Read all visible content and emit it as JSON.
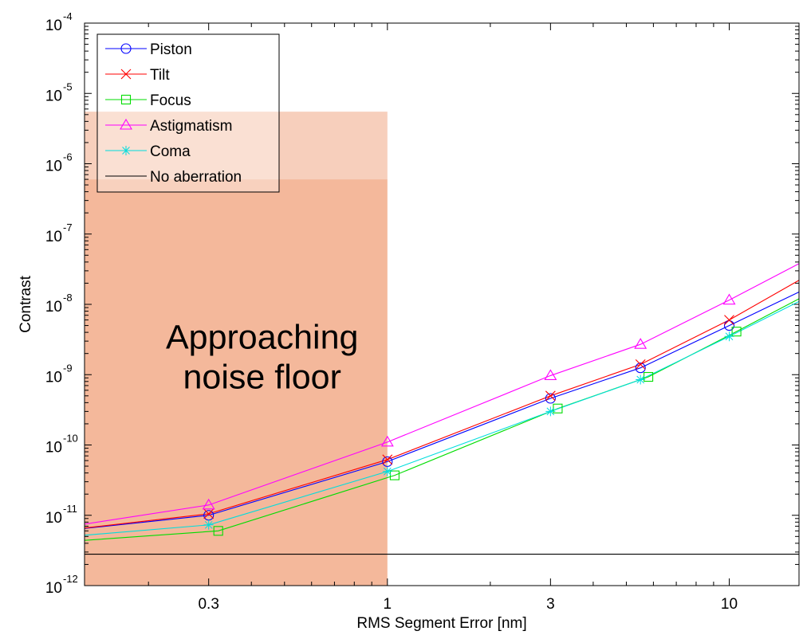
{
  "chart_data": {
    "type": "line",
    "xlabel": "RMS Segment Error [nm]",
    "ylabel": "Contrast",
    "x_scale": "log",
    "y_scale": "log",
    "xlim": [
      0.13,
      16
    ],
    "ylim": [
      1e-12,
      0.0001
    ],
    "x_ticks": [
      0.3,
      1,
      3,
      10
    ],
    "x_tick_labels": [
      "0.3",
      "1",
      "3",
      "10"
    ],
    "y_ticks": [
      1e-12,
      1e-11,
      1e-10,
      1e-09,
      1e-08,
      1e-07,
      1e-06,
      1e-05,
      0.0001
    ],
    "y_tick_labels": [
      {
        "base": "10",
        "exp": "-12"
      },
      {
        "base": "10",
        "exp": "-11"
      },
      {
        "base": "10",
        "exp": "-10"
      },
      {
        "base": "10",
        "exp": "-9"
      },
      {
        "base": "10",
        "exp": "-8"
      },
      {
        "base": "10",
        "exp": "-7"
      },
      {
        "base": "10",
        "exp": "-6"
      },
      {
        "base": "10",
        "exp": "-5"
      },
      {
        "base": "10",
        "exp": "-4"
      }
    ],
    "grid": false,
    "legend_position": "top-left",
    "series": [
      {
        "name": "Piston",
        "color": "#0000ff",
        "marker": "circle",
        "x": [
          0.13,
          0.3,
          1,
          3,
          5.5,
          10,
          16
        ],
        "y": [
          6.5e-12,
          1e-11,
          5.8e-11,
          4.6e-10,
          1.25e-09,
          5e-09,
          1.5e-08
        ],
        "marked": [
          false,
          true,
          true,
          true,
          true,
          true,
          false
        ]
      },
      {
        "name": "Tilt",
        "color": "#ff0000",
        "marker": "x",
        "x": [
          0.13,
          0.3,
          1,
          3,
          5.5,
          10,
          16
        ],
        "y": [
          6.6e-12,
          1.05e-11,
          6.2e-11,
          5e-10,
          1.4e-09,
          6e-09,
          2.2e-08
        ],
        "marked": [
          false,
          true,
          true,
          true,
          true,
          true,
          false
        ]
      },
      {
        "name": "Focus",
        "color": "#00dd00",
        "marker": "square",
        "x": [
          0.13,
          0.32,
          1.05,
          3.15,
          5.8,
          10.5,
          16
        ],
        "y": [
          4.4e-12,
          6e-12,
          3.7e-11,
          3.3e-10,
          9.3e-10,
          4.1e-09,
          1.2e-08
        ],
        "marked": [
          false,
          true,
          true,
          true,
          true,
          true,
          false
        ]
      },
      {
        "name": "Astigmatism",
        "color": "#ff00ff",
        "marker": "triangle",
        "x": [
          0.13,
          0.3,
          1,
          3,
          5.5,
          10,
          16
        ],
        "y": [
          7.5e-12,
          1.4e-11,
          1.1e-10,
          9.7e-10,
          2.7e-09,
          1.15e-08,
          3.8e-08
        ],
        "marked": [
          false,
          true,
          true,
          true,
          true,
          true,
          false
        ]
      },
      {
        "name": "Coma",
        "color": "#00dddd",
        "marker": "asterisk",
        "x": [
          0.13,
          0.3,
          1,
          3,
          5.5,
          10,
          16
        ],
        "y": [
          5.2e-12,
          7.3e-12,
          4.2e-11,
          3e-10,
          8.5e-10,
          3.5e-09,
          1.1e-08
        ],
        "marked": [
          false,
          true,
          true,
          true,
          true,
          true,
          false
        ]
      },
      {
        "name": "No aberration",
        "color": "#000000",
        "marker": "none",
        "x": [
          0.13,
          16
        ],
        "y": [
          2.8e-12,
          2.8e-12
        ],
        "marked": [
          false,
          false
        ]
      }
    ],
    "annotation": {
      "lines": [
        "Approaching",
        "noise floor"
      ],
      "x_range": [
        0.13,
        1
      ],
      "y_range": [
        1e-12,
        5.5e-06
      ],
      "y_light_above": 6e-07,
      "fill_color": "#f0a07a",
      "text_x": 0.43,
      "text_y": 1.9e-09
    }
  }
}
